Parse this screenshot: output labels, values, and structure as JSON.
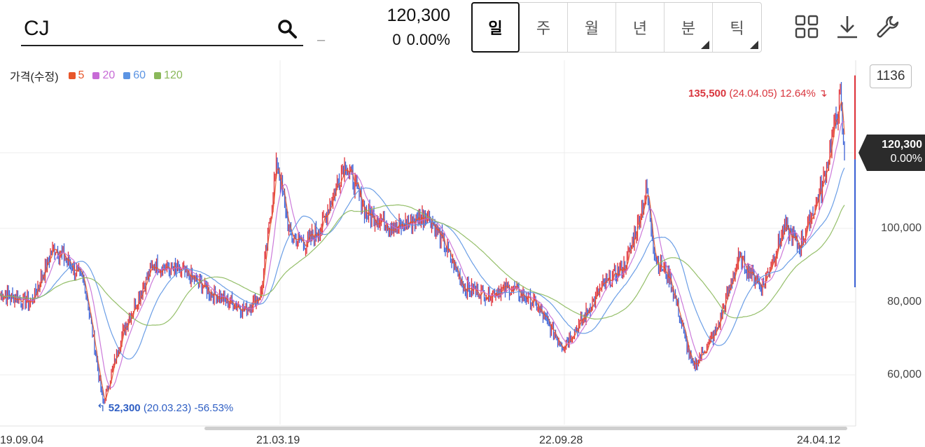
{
  "header": {
    "symbol": "CJ",
    "dash": "–",
    "price": "120,300",
    "change": "0",
    "change_pct": "0.00%",
    "periods": [
      {
        "label": "일",
        "active": true,
        "has_menu": false
      },
      {
        "label": "주",
        "active": false,
        "has_menu": false
      },
      {
        "label": "월",
        "active": false,
        "has_menu": false
      },
      {
        "label": "년",
        "active": false,
        "has_menu": false
      },
      {
        "label": "분",
        "active": false,
        "has_menu": true
      },
      {
        "label": "틱",
        "active": false,
        "has_menu": true
      }
    ],
    "tools": [
      "grid-layout-icon",
      "download-icon",
      "wrench-icon"
    ]
  },
  "chart_data": {
    "type": "line",
    "series_kind": "candlestick with moving averages",
    "legend_title": "가격(수정)",
    "moving_averages": [
      {
        "name": "5",
        "color": "#e8562a"
      },
      {
        "name": "20",
        "color": "#c76bd6"
      },
      {
        "name": "60",
        "color": "#5b94e3"
      },
      {
        "name": "120",
        "color": "#8ab85a"
      }
    ],
    "candle_count": "1136",
    "x_ticks": [
      "19.09.04",
      "21.03.19",
      "22.09.28",
      "24.04.12"
    ],
    "y_ticks": [
      "100,000",
      "80,000",
      "60,000"
    ],
    "ylim": [
      50000,
      145000
    ],
    "approx_close": [
      [
        "2019-09-04",
        82000
      ],
      [
        "2019-11-01",
        80000
      ],
      [
        "2019-12-15",
        95000
      ],
      [
        "2020-01-20",
        90000
      ],
      [
        "2020-02-15",
        85000
      ],
      [
        "2020-03-23",
        52300
      ],
      [
        "2020-05-01",
        72000
      ],
      [
        "2020-07-01",
        90000
      ],
      [
        "2020-09-01",
        88000
      ],
      [
        "2020-11-01",
        82000
      ],
      [
        "2021-01-01",
        78000
      ],
      [
        "2021-02-01",
        82000
      ],
      [
        "2021-03-05",
        118000
      ],
      [
        "2021-04-01",
        98000
      ],
      [
        "2021-05-01",
        96000
      ],
      [
        "2021-06-01",
        100000
      ],
      [
        "2021-07-20",
        118000
      ],
      [
        "2021-09-01",
        104000
      ],
      [
        "2021-11-01",
        100000
      ],
      [
        "2022-01-01",
        104000
      ],
      [
        "2022-02-01",
        96000
      ],
      [
        "2022-03-15",
        84000
      ],
      [
        "2022-05-01",
        82000
      ],
      [
        "2022-06-15",
        84000
      ],
      [
        "2022-08-01",
        80000
      ],
      [
        "2022-09-28",
        68000
      ],
      [
        "2022-11-01",
        74000
      ],
      [
        "2022-12-15",
        84000
      ],
      [
        "2023-02-01",
        90000
      ],
      [
        "2023-03-15",
        110000
      ],
      [
        "2023-04-01",
        92000
      ],
      [
        "2023-05-01",
        86000
      ],
      [
        "2023-06-15",
        62000
      ],
      [
        "2023-08-01",
        72000
      ],
      [
        "2023-09-15",
        92000
      ],
      [
        "2023-11-01",
        84000
      ],
      [
        "2023-12-15",
        100000
      ],
      [
        "2024-01-15",
        95000
      ],
      [
        "2024-03-01",
        112000
      ],
      [
        "2024-04-05",
        135500
      ],
      [
        "2024-04-12",
        120300
      ]
    ],
    "high": {
      "value": "135,500",
      "date": "(24.04.05)",
      "pct": "12.64%"
    },
    "low": {
      "value": "52,300",
      "date": "(20.03.23)",
      "pct": "-56.53%"
    },
    "last": {
      "price": "120,300",
      "pct": "0.00%"
    },
    "grid": true,
    "colors": {
      "up": "#e0323a",
      "down": "#3d62d6",
      "ma5": "#e8562a",
      "ma20": "#c76bd6",
      "ma60": "#5b94e3",
      "ma120": "#8ab85a",
      "last_tag": "#2b2b2b"
    }
  }
}
